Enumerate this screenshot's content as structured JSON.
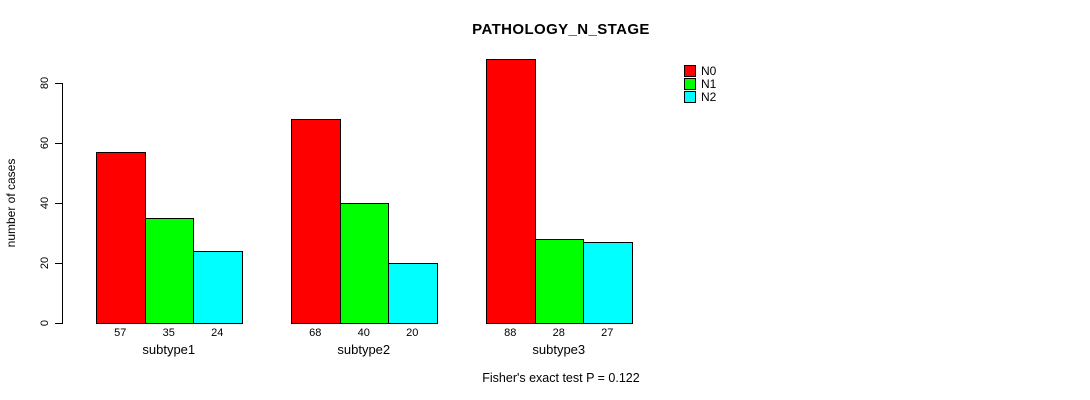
{
  "chart_data": {
    "type": "bar",
    "grouped": true,
    "title": "PATHOLOGY_N_STAGE",
    "xlabel": "",
    "ylabel": "number of cases",
    "categories": [
      "subtype1",
      "subtype2",
      "subtype3"
    ],
    "series": [
      {
        "name": "N0",
        "color": "#ff0000",
        "values": [
          57,
          68,
          88
        ]
      },
      {
        "name": "N1",
        "color": "#00ff00",
        "values": [
          35,
          40,
          28
        ]
      },
      {
        "name": "N2",
        "color": "#00ffff",
        "values": [
          24,
          20,
          27
        ]
      }
    ],
    "yticks": [
      0,
      20,
      40,
      60,
      80
    ],
    "ylim": [
      0,
      88
    ],
    "grid": false,
    "bar_value_labels": true,
    "legend_position": "top-right",
    "annotation": "Fisher's exact test P = 0.122"
  },
  "colors": {
    "background": "#ffffff",
    "axis": "#000000",
    "text": "#000000"
  }
}
